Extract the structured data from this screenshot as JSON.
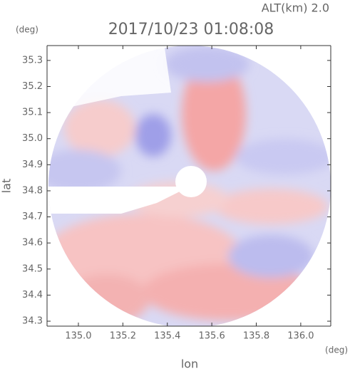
{
  "chart_data": {
    "type": "radar-field",
    "title": "2017/10/23 01:08:08",
    "annotation": "ALT(km) 2.0",
    "x_label": "lon",
    "y_label": "lat",
    "x_unit": "(deg)",
    "y_unit": "(deg)",
    "xlim": [
      134.859,
      136.135
    ],
    "ylim": [
      34.281,
      35.357
    ],
    "xticks": [
      {
        "value": 135,
        "label": "135.0"
      },
      135.2,
      135.4,
      135.6,
      135.8,
      {
        "value": 136,
        "label": "136.0"
      }
    ],
    "yticks": [
      34.3,
      34.4,
      34.5,
      34.6,
      34.7,
      34.8,
      34.9,
      {
        "value": 35,
        "label": "35.0"
      },
      35.1,
      35.2,
      35.3
    ]
  }
}
